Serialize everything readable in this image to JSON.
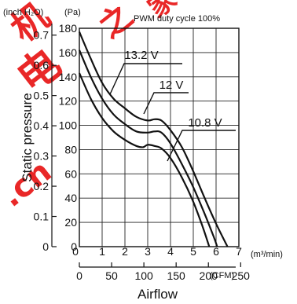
{
  "chart_data": {
    "type": "line",
    "title": "PWM duty cycle 100%",
    "xlabel": "Airflow",
    "ylabel": "Static pressure",
    "x_unit": "(m³/min)",
    "x_unit_secondary": "(CFM)",
    "y_unit": "(Pa)",
    "y_unit_secondary": "(inch H₂O)",
    "xlim": [
      0,
      7
    ],
    "ylim": [
      0,
      180
    ],
    "x_ticks": [
      "0",
      "1",
      "2",
      "3",
      "4",
      "5",
      "6",
      "7"
    ],
    "y_ticks": [
      "180",
      "160",
      "140",
      "120",
      "100",
      "80",
      "60",
      "40",
      "20",
      "0"
    ],
    "x_ticks_secondary": [
      "0",
      "50",
      "100",
      "150",
      "200",
      "250"
    ],
    "y_ticks_secondary": [
      "0.7",
      "0.6",
      "0.5",
      "0.4",
      "0.3",
      "0.2",
      "0.1",
      "0"
    ],
    "grid": true,
    "series": [
      {
        "name": "13.2 V",
        "points": [
          [
            0,
            177
          ],
          [
            0.5,
            155
          ],
          [
            1.0,
            135
          ],
          [
            1.5,
            122
          ],
          [
            2.0,
            114
          ],
          [
            2.5,
            107
          ],
          [
            3.0,
            104
          ],
          [
            3.3,
            105
          ],
          [
            3.6,
            104
          ],
          [
            4.0,
            96
          ],
          [
            4.5,
            82
          ],
          [
            5.0,
            62
          ],
          [
            5.5,
            40
          ],
          [
            6.0,
            19
          ],
          [
            6.5,
            0
          ]
        ]
      },
      {
        "name": "12 V",
        "points": [
          [
            0,
            162
          ],
          [
            0.5,
            140
          ],
          [
            1.0,
            122
          ],
          [
            1.5,
            109
          ],
          [
            2.0,
            101
          ],
          [
            2.5,
            95
          ],
          [
            3.0,
            94
          ],
          [
            3.3,
            95
          ],
          [
            3.6,
            94
          ],
          [
            4.0,
            85
          ],
          [
            4.5,
            68
          ],
          [
            5.0,
            49
          ],
          [
            5.5,
            27
          ],
          [
            5.9,
            8
          ],
          [
            6.05,
            0
          ]
        ]
      },
      {
        "name": "10.8 V",
        "points": [
          [
            0,
            143
          ],
          [
            0.5,
            122
          ],
          [
            1.0,
            106
          ],
          [
            1.5,
            95
          ],
          [
            2.0,
            88
          ],
          [
            2.5,
            83
          ],
          [
            2.8,
            82
          ],
          [
            3.0,
            84
          ],
          [
            3.3,
            83
          ],
          [
            3.6,
            81
          ],
          [
            4.0,
            73
          ],
          [
            4.5,
            57
          ],
          [
            5.0,
            37
          ],
          [
            5.4,
            17
          ],
          [
            5.7,
            0
          ]
        ]
      }
    ]
  },
  "watermark": {
    "text": "机电之家 .cn",
    "color": "#e81c1c"
  }
}
